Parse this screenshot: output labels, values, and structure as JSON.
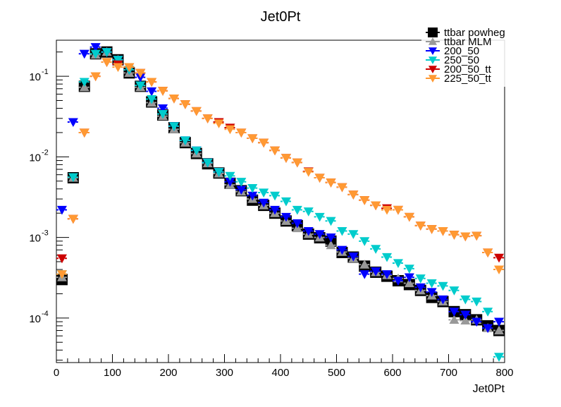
{
  "chart_data": {
    "type": "scatter",
    "title": "Jet0Pt",
    "xlabel": "Jet0Pt",
    "ylabel": "",
    "xlim": [
      0,
      800
    ],
    "ylim": [
      2.8e-05,
      0.28
    ],
    "yscale": "log",
    "grid": false,
    "legend_position": "top-right",
    "x_ticks": [
      "0",
      "100",
      "200",
      "300",
      "400",
      "500",
      "600",
      "700",
      "800"
    ],
    "y_ticks": [
      {
        "base": "10",
        "exp": "-1",
        "value": 0.1
      },
      {
        "base": "10",
        "exp": "-2",
        "value": 0.01
      },
      {
        "base": "10",
        "exp": "-3",
        "value": 0.001
      },
      {
        "base": "10",
        "exp": "-4",
        "value": 0.0001
      }
    ],
    "x": [
      10,
      30,
      50,
      70,
      90,
      110,
      130,
      150,
      170,
      190,
      210,
      230,
      250,
      270,
      290,
      310,
      330,
      350,
      370,
      390,
      410,
      430,
      450,
      470,
      490,
      510,
      530,
      550,
      570,
      590,
      610,
      630,
      650,
      670,
      690,
      710,
      730,
      750,
      770,
      790
    ],
    "series": [
      {
        "name": "ttbar powheg",
        "marker": "square",
        "color": "#000000",
        "values": [
          0.0003,
          0.0055,
          0.075,
          0.19,
          0.2,
          0.16,
          0.11,
          0.075,
          0.048,
          0.033,
          0.023,
          0.015,
          0.011,
          0.0082,
          0.0063,
          0.0047,
          0.0038,
          0.0029,
          0.0025,
          0.002,
          0.0016,
          0.0014,
          0.0011,
          0.00099,
          0.0009,
          0.00065,
          0.00057,
          0.00044,
          0.00037,
          0.00033,
          0.00029,
          0.00026,
          0.00022,
          0.00018,
          0.00016,
          0.00012,
          0.00011,
          9.5e-05,
          8e-05,
          7e-05
        ]
      },
      {
        "name": "ttbar MLM",
        "marker": "triangle-up",
        "color": "#999999",
        "values": [
          0.00032,
          0.0055,
          0.073,
          0.185,
          0.2,
          0.16,
          0.11,
          0.073,
          0.047,
          0.032,
          0.022,
          0.015,
          0.011,
          0.0083,
          0.0062,
          0.0045,
          0.0037,
          0.003,
          0.0025,
          0.002,
          0.0016,
          0.0013,
          0.0011,
          0.001,
          0.0008,
          0.00066,
          0.00055,
          0.00046,
          0.00037,
          0.00034,
          0.00031,
          0.00027,
          0.00022,
          0.00019,
          0.00016,
          9.5e-05,
          9.3e-05,
          9.5e-05,
          7.5e-05,
          7e-05
        ]
      },
      {
        "name": "200_50",
        "marker": "triangle-down",
        "color": "#0000ff",
        "values": [
          0.0022,
          0.027,
          0.19,
          0.23,
          0.2,
          0.16,
          0.12,
          0.097,
          0.065,
          0.04,
          0.024,
          0.016,
          0.012,
          0.0085,
          0.0065,
          0.0049,
          0.0039,
          0.0033,
          0.0027,
          0.0022,
          0.0018,
          0.0015,
          0.0012,
          0.0011,
          0.001,
          0.0007,
          0.00058,
          0.00035,
          0.00038,
          0.00035,
          0.00029,
          0.00032,
          0.00024,
          0.00021,
          0.00017,
          0.00012,
          0.00011,
          9e-05,
          7.5e-05,
          9e-05
        ]
      },
      {
        "name": "250_50",
        "marker": "triangle-down",
        "color": "#00cccc",
        "values": [
          0.00035,
          0.0056,
          0.085,
          0.19,
          0.2,
          0.16,
          0.12,
          0.077,
          0.052,
          0.034,
          0.024,
          0.016,
          0.012,
          0.0085,
          0.0065,
          0.0058,
          0.0049,
          0.0041,
          0.0036,
          0.0033,
          0.0028,
          0.0022,
          0.0021,
          0.0018,
          0.0016,
          0.0012,
          0.0011,
          0.0009,
          0.00072,
          0.00057,
          0.00048,
          0.00041,
          0.00031,
          0.00027,
          0.00025,
          0.00022,
          0.00017,
          0.00016,
          0.00012,
          3.3e-05
        ]
      },
      {
        "name": "200_50_tt",
        "marker": "triangle-down",
        "color": "#cc0000",
        "values": [
          0.00055,
          0.0017,
          0.02,
          0.1,
          0.15,
          0.14,
          0.13,
          0.11,
          0.085,
          0.066,
          0.053,
          0.045,
          0.037,
          0.03,
          0.027,
          0.023,
          0.02,
          0.017,
          0.015,
          0.012,
          0.0097,
          0.0085,
          0.0066,
          0.0055,
          0.0048,
          0.0042,
          0.0034,
          0.0029,
          0.0025,
          0.0023,
          0.0022,
          0.0018,
          0.0014,
          0.00127,
          0.0012,
          0.00108,
          0.00103,
          0.00105,
          0.00065,
          0.00056
        ]
      },
      {
        "name": "225_50_tt",
        "marker": "triangle-down",
        "color": "#ff9933",
        "values": [
          0.00035,
          0.0017,
          0.02,
          0.1,
          0.15,
          0.13,
          0.13,
          0.11,
          0.085,
          0.066,
          0.053,
          0.045,
          0.037,
          0.03,
          0.026,
          0.022,
          0.02,
          0.017,
          0.015,
          0.012,
          0.0097,
          0.0085,
          0.0065,
          0.0055,
          0.0048,
          0.0042,
          0.0034,
          0.0029,
          0.0025,
          0.0022,
          0.0022,
          0.0018,
          0.0014,
          0.00127,
          0.0012,
          0.00108,
          0.00103,
          0.00105,
          0.00065,
          0.0004
        ]
      }
    ]
  }
}
